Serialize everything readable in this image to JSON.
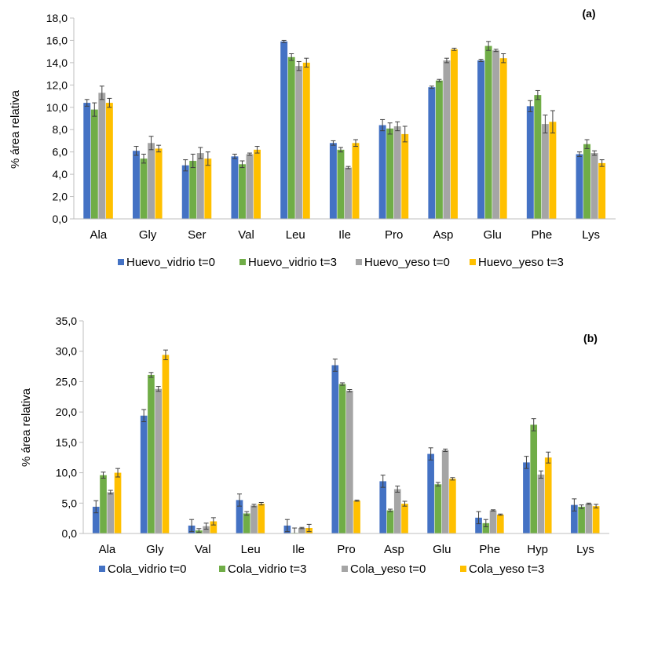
{
  "colors": {
    "blue": "#4472C4",
    "green": "#70AD47",
    "gray": "#A5A5A5",
    "yellow": "#FFC000",
    "axis": "#BFBFBF",
    "errorbar": "#404040"
  },
  "chart_data": [
    {
      "type": "bar",
      "panel_label": "(a)",
      "ylabel": "% área relativa",
      "xlabel": "",
      "ylim": [
        0,
        18
      ],
      "ytick_step": 2,
      "ytick_labels": [
        "0,0",
        "2,0",
        "4,0",
        "6,0",
        "8,0",
        "10,0",
        "12,0",
        "14,0",
        "16,0",
        "18,0"
      ],
      "grid": false,
      "legend": "bottom",
      "categories": [
        "Ala",
        "Gly",
        "Ser",
        "Val",
        "Leu",
        "Ile",
        "Pro",
        "Asp",
        "Glu",
        "Phe",
        "Lys"
      ],
      "series": [
        {
          "name": "Huevo_vidrio t=0",
          "color": "#4472C4",
          "values": [
            10.4,
            6.1,
            4.8,
            5.6,
            15.9,
            6.8,
            8.4,
            11.8,
            14.2,
            10.1,
            5.8
          ],
          "errors": [
            0.3,
            0.4,
            0.5,
            0.2,
            0.1,
            0.2,
            0.5,
            0.1,
            0.1,
            0.5,
            0.2
          ]
        },
        {
          "name": "Huevo_vidrio t=3",
          "color": "#70AD47",
          "values": [
            9.8,
            5.4,
            5.2,
            4.9,
            14.5,
            6.2,
            8.1,
            12.4,
            15.5,
            11.1,
            6.7
          ],
          "errors": [
            0.6,
            0.4,
            0.6,
            0.3,
            0.3,
            0.2,
            0.5,
            0.1,
            0.4,
            0.4,
            0.4
          ]
        },
        {
          "name": "Huevo_yeso t=0",
          "color": "#A5A5A5",
          "values": [
            11.3,
            6.8,
            5.9,
            5.8,
            13.7,
            4.6,
            8.3,
            14.2,
            15.1,
            8.5,
            5.9
          ],
          "errors": [
            0.6,
            0.6,
            0.5,
            0.1,
            0.4,
            0.1,
            0.4,
            0.2,
            0.1,
            0.8,
            0.2
          ]
        },
        {
          "name": "Huevo_yeso t=3",
          "color": "#FFC000",
          "values": [
            10.4,
            6.3,
            5.4,
            6.2,
            14.0,
            6.8,
            7.6,
            15.2,
            14.4,
            8.7,
            5.0
          ],
          "errors": [
            0.4,
            0.3,
            0.6,
            0.3,
            0.4,
            0.3,
            0.7,
            0.1,
            0.4,
            1.0,
            0.3
          ]
        }
      ]
    },
    {
      "type": "bar",
      "panel_label": "(b)",
      "ylabel": "% área relativa",
      "xlabel": "",
      "ylim": [
        0,
        35
      ],
      "ytick_step": 5,
      "ytick_labels": [
        "0,0",
        "5,0",
        "10,0",
        "15,0",
        "20,0",
        "25,0",
        "30,0",
        "35,0"
      ],
      "grid": false,
      "legend": "bottom",
      "categories": [
        "Ala",
        "Gly",
        "Val",
        "Leu",
        "Ile",
        "Pro",
        "Asp",
        "Glu",
        "Phe",
        "Hyp",
        "Lys"
      ],
      "series": [
        {
          "name": "Cola_vidrio t=0",
          "color": "#4472C4",
          "values": [
            4.4,
            19.4,
            1.3,
            5.5,
            1.3,
            27.7,
            8.6,
            13.1,
            2.6,
            11.7,
            4.7
          ],
          "errors": [
            1.0,
            1.0,
            1.0,
            1.0,
            1.0,
            1.0,
            1.0,
            1.0,
            1.0,
            1.0,
            1.0
          ]
        },
        {
          "name": "Cola_vidrio t=3",
          "color": "#70AD47",
          "values": [
            9.6,
            26.1,
            0.5,
            3.3,
            0.1,
            24.6,
            3.8,
            8.1,
            1.7,
            17.9,
            4.4
          ],
          "errors": [
            0.5,
            0.4,
            0.3,
            0.3,
            0.8,
            0.2,
            0.2,
            0.3,
            0.6,
            1.0,
            0.3
          ]
        },
        {
          "name": "Cola_yeso t=0",
          "color": "#A5A5A5",
          "values": [
            6.8,
            23.8,
            1.2,
            4.6,
            0.9,
            23.5,
            7.3,
            13.7,
            3.8,
            9.7,
            4.9
          ],
          "errors": [
            0.3,
            0.4,
            0.5,
            0.2,
            0.1,
            0.2,
            0.5,
            0.2,
            0.1,
            0.6,
            0.1
          ]
        },
        {
          "name": "Cola_yeso t=3",
          "color": "#FFC000",
          "values": [
            10.0,
            29.4,
            2.0,
            4.9,
            0.9,
            5.4,
            4.9,
            9.0,
            3.1,
            12.5,
            4.5
          ],
          "errors": [
            0.7,
            0.8,
            0.6,
            0.2,
            0.6,
            0.1,
            0.4,
            0.2,
            0.1,
            0.9,
            0.3
          ]
        }
      ]
    }
  ]
}
